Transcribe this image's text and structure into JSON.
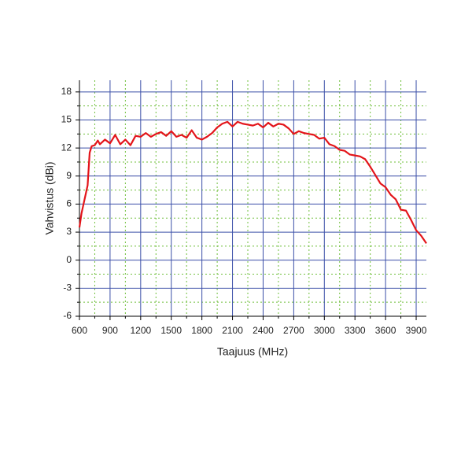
{
  "chart_data": {
    "type": "line",
    "xlabel": "Taajuus (MHz)",
    "ylabel": "Vahvistus (dBi)",
    "x": [
      600,
      620,
      650,
      680,
      700,
      720,
      750,
      780,
      800,
      850,
      900,
      950,
      1000,
      1050,
      1100,
      1150,
      1200,
      1250,
      1300,
      1350,
      1400,
      1450,
      1500,
      1550,
      1600,
      1650,
      1700,
      1750,
      1800,
      1850,
      1900,
      1950,
      2000,
      2050,
      2100,
      2150,
      2200,
      2250,
      2300,
      2350,
      2400,
      2450,
      2500,
      2550,
      2600,
      2650,
      2700,
      2750,
      2800,
      2850,
      2900,
      2950,
      3000,
      3050,
      3100,
      3150,
      3200,
      3250,
      3300,
      3350,
      3400,
      3450,
      3500,
      3550,
      3600,
      3650,
      3700,
      3750,
      3800,
      3850,
      3900,
      3950,
      4000
    ],
    "series": [
      {
        "name": "Vahvistus",
        "color": "#e3151a",
        "values": [
          3.5,
          5,
          6.5,
          8,
          11.5,
          12.2,
          12.3,
          12.8,
          12.4,
          12.9,
          12.5,
          13.4,
          12.4,
          12.9,
          12.3,
          13.3,
          13.2,
          13.6,
          13.2,
          13.5,
          13.7,
          13.3,
          13.8,
          13.2,
          13.4,
          13.1,
          13.9,
          13.1,
          12.9,
          13.2,
          13.6,
          14.2,
          14.6,
          14.8,
          14.3,
          14.8,
          14.6,
          14.5,
          14.4,
          14.6,
          14.2,
          14.7,
          14.3,
          14.6,
          14.5,
          14.1,
          13.5,
          13.8,
          13.6,
          13.5,
          13.4,
          13.0,
          13.1,
          12.4,
          12.2,
          11.8,
          11.7,
          11.3,
          11.2,
          11.1,
          10.8,
          10.0,
          9.1,
          8.2,
          7.8,
          7.0,
          6.5,
          5.4,
          5.3,
          4.3,
          3.2,
          2.6,
          1.8
        ]
      }
    ],
    "xlim": [
      600,
      4000
    ],
    "xticks": [
      600,
      900,
      1200,
      1500,
      1800,
      2100,
      2400,
      2700,
      3000,
      3300,
      3600,
      3900
    ],
    "ylim": [
      -6,
      19.25
    ],
    "yticks": [
      -6,
      -3,
      0,
      3,
      6,
      9,
      12,
      15,
      18
    ],
    "grid": true,
    "major_grid_color": "#3b4fa8",
    "minor_grid_color": "#6fbf3a"
  }
}
